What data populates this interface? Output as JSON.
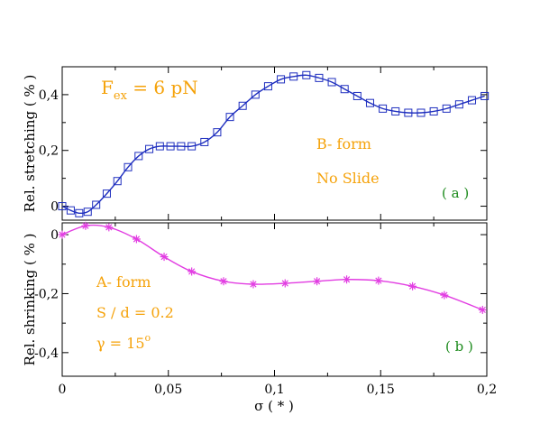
{
  "chart_data": [
    {
      "type": "line",
      "panel": "a",
      "ylabel": "Rel. stretching ( % )",
      "xlim": [
        0,
        0.2
      ],
      "ylim": [
        -0.05,
        0.5
      ],
      "yticks": [
        0,
        0.2,
        0.4
      ],
      "ytick_labels": [
        "0",
        "0,2",
        "0,4"
      ],
      "marker": "square",
      "color": "#1f2fbf",
      "annotations": {
        "force_main": "F",
        "force_sub": "ex",
        "force_rest": " = 6 pN",
        "form": "B- form",
        "slide": "No Slide",
        "panel_tag": "( a )"
      },
      "x": [
        0,
        0.004,
        0.008,
        0.012,
        0.016,
        0.021,
        0.026,
        0.031,
        0.036,
        0.041,
        0.046,
        0.051,
        0.056,
        0.061,
        0.067,
        0.073,
        0.079,
        0.085,
        0.091,
        0.097,
        0.103,
        0.109,
        0.115,
        0.121,
        0.127,
        0.133,
        0.139,
        0.145,
        0.151,
        0.157,
        0.163,
        0.169,
        0.175,
        0.181,
        0.187,
        0.193,
        0.199
      ],
      "y": [
        0.0,
        -0.015,
        -0.025,
        -0.02,
        0.005,
        0.045,
        0.09,
        0.14,
        0.18,
        0.205,
        0.215,
        0.215,
        0.215,
        0.215,
        0.23,
        0.265,
        0.32,
        0.36,
        0.4,
        0.43,
        0.455,
        0.465,
        0.47,
        0.46,
        0.445,
        0.42,
        0.395,
        0.37,
        0.35,
        0.34,
        0.335,
        0.335,
        0.34,
        0.35,
        0.365,
        0.38,
        0.395
      ]
    },
    {
      "type": "line",
      "panel": "b",
      "ylabel": "Rel. shrinking ( % )",
      "xlabel": "σ ( * )",
      "xlim": [
        0,
        0.2
      ],
      "ylim": [
        -0.48,
        0.04
      ],
      "xticks": [
        0,
        0.05,
        0.1,
        0.15,
        0.2
      ],
      "xtick_labels": [
        "0",
        "0,05",
        "0,1",
        "0,15",
        "0,2"
      ],
      "yticks": [
        0,
        -0.2,
        -0.4
      ],
      "ytick_labels": [
        "0",
        "-0,2",
        "-0,4"
      ],
      "marker": "asterisk",
      "color": "#e23de2",
      "annotations": {
        "form": "A- form",
        "ratio": "S / d = 0.2",
        "angle_main": "γ = 15",
        "angle_sup": "o",
        "panel_tag": "( b )"
      },
      "x": [
        0,
        0.011,
        0.022,
        0.035,
        0.048,
        0.061,
        0.076,
        0.09,
        0.105,
        0.12,
        0.134,
        0.149,
        0.165,
        0.18,
        0.198
      ],
      "y": [
        0.0,
        0.03,
        0.025,
        -0.015,
        -0.075,
        -0.125,
        -0.158,
        -0.168,
        -0.165,
        -0.158,
        -0.152,
        -0.156,
        -0.175,
        -0.205,
        -0.255
      ]
    }
  ]
}
